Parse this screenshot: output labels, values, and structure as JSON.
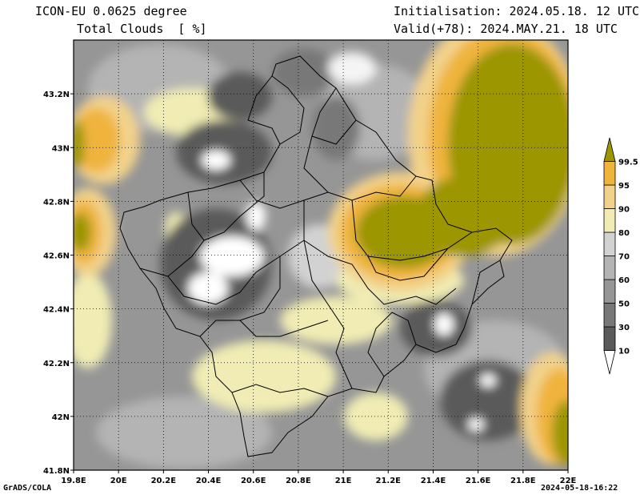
{
  "header": {
    "model": "ICON-EU 0.0625 degree",
    "variable": "Total Clouds  [ %]",
    "init": "Initialisation: 2024.05.18. 12 UTC",
    "valid": "Valid(+78): 2024.MAY.21. 18 UTC"
  },
  "footer": {
    "credit": "GrADS/COLA",
    "timestamp": "2024-05-18-16:22"
  },
  "axes": {
    "lon_ticks": [
      "19.8E",
      "20E",
      "20.2E",
      "20.4E",
      "20.6E",
      "20.8E",
      "21E",
      "21.2E",
      "21.4E",
      "21.6E",
      "21.8E",
      "22E"
    ],
    "lon_values": [
      19.8,
      20.0,
      20.2,
      20.4,
      20.6,
      20.8,
      21.0,
      21.2,
      21.4,
      21.6,
      21.8,
      22.0
    ],
    "lat_ticks": [
      "43.2N",
      "43N",
      "42.8N",
      "42.6N",
      "42.4N",
      "42.2N",
      "42N",
      "41.8N"
    ],
    "lat_values": [
      43.2,
      43.0,
      42.8,
      42.6,
      42.4,
      42.2,
      42.0,
      41.8
    ],
    "lon_range": [
      19.8,
      22.0
    ],
    "lat_range": [
      41.8,
      43.4
    ]
  },
  "colorbar": {
    "levels": [
      "10",
      "30",
      "50",
      "60",
      "70",
      "80",
      "90",
      "95",
      "99.5"
    ],
    "colors": [
      "#ffffff",
      "#5a5a5a",
      "#787878",
      "#969696",
      "#b4b4b4",
      "#d2d2d2",
      "#f0ecb4",
      "#f2d28a",
      "#f0b43c",
      "#9c9600"
    ]
  }
}
